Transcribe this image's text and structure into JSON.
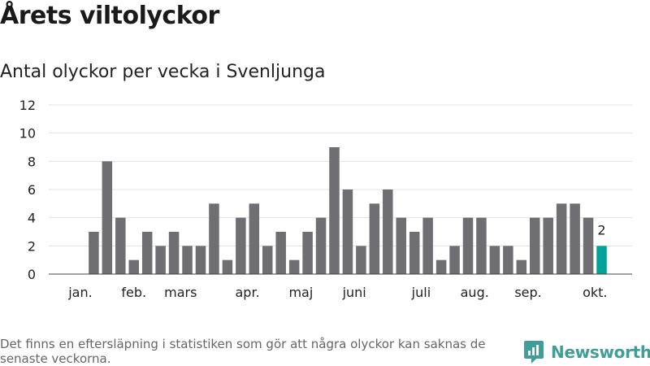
{
  "header": {
    "title": "Årets viltolyckor",
    "subtitle": "Antal olyckor per vecka i Svenljunga"
  },
  "footer": {
    "note": "Det finns en eftersläpning i statistiken som gör att några olyckor kan saknas de senaste veckorna."
  },
  "brand": {
    "name": "Newsworthy",
    "icon": "newsworthy-logo-icon"
  },
  "colors": {
    "bar": "#6f6e73",
    "highlight": "#00a39a",
    "grid": "#e3e3e3",
    "text": "#1a1a1a"
  },
  "chart_data": {
    "type": "bar",
    "title": "Antal olyckor per vecka i Svenljunga",
    "xlabel": "",
    "ylabel": "",
    "ylim": [
      0,
      12
    ],
    "yticks": [
      0,
      2,
      4,
      6,
      8,
      10,
      12
    ],
    "grid": true,
    "weeks": [
      1,
      2,
      3,
      4,
      5,
      6,
      7,
      8,
      9,
      10,
      11,
      12,
      13,
      14,
      15,
      16,
      17,
      18,
      19,
      20,
      21,
      22,
      23,
      24,
      25,
      26,
      27,
      28,
      29,
      30,
      31,
      32,
      33,
      34,
      35,
      36,
      37,
      38,
      39,
      40,
      41
    ],
    "values": [
      0,
      0,
      3,
      8,
      4,
      1,
      3,
      2,
      3,
      2,
      2,
      5,
      1,
      4,
      5,
      2,
      3,
      1,
      3,
      4,
      9,
      6,
      2,
      5,
      6,
      4,
      3,
      4,
      1,
      2,
      4,
      4,
      2,
      2,
      1,
      4,
      4,
      5,
      5,
      4,
      2
    ],
    "month_labels": [
      {
        "label": "jan.",
        "week": 2
      },
      {
        "label": "feb.",
        "week": 6
      },
      {
        "label": "mars",
        "week": 9.5
      },
      {
        "label": "apr.",
        "week": 14.5
      },
      {
        "label": "maj",
        "week": 18.5
      },
      {
        "label": "juni",
        "week": 22.5
      },
      {
        "label": "juli",
        "week": 27.5
      },
      {
        "label": "aug.",
        "week": 31.5
      },
      {
        "label": "sep.",
        "week": 35.5
      },
      {
        "label": "okt.",
        "week": 40.5
      }
    ],
    "highlight_index": 40,
    "highlight_label": "2"
  }
}
